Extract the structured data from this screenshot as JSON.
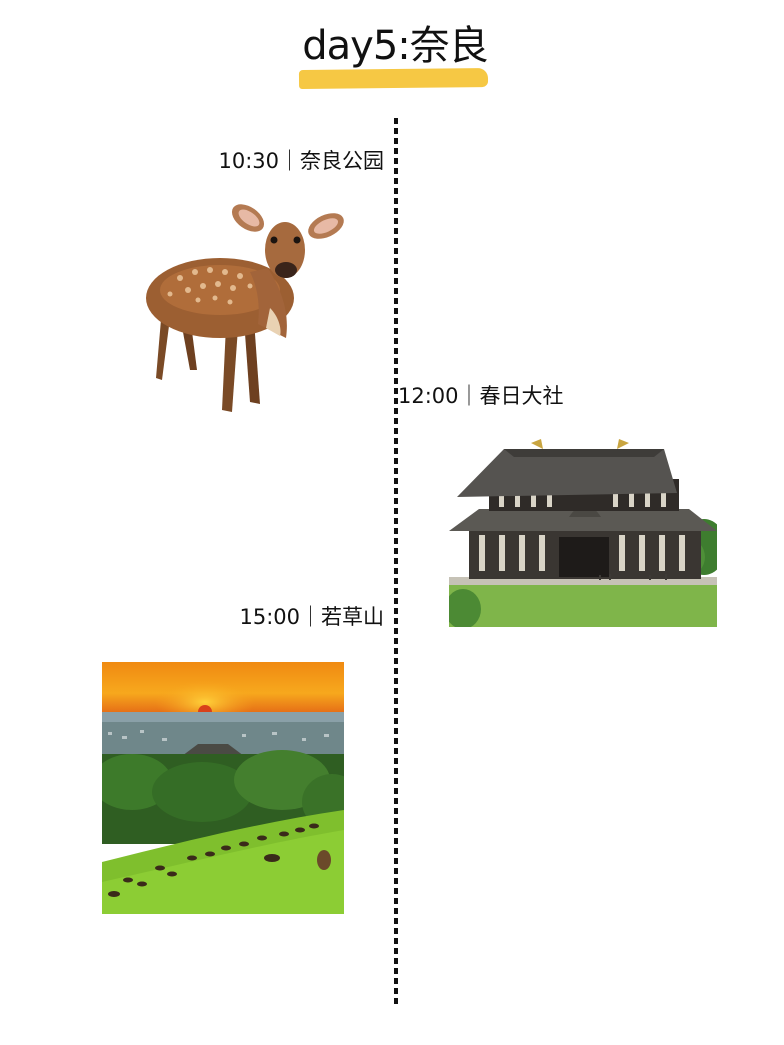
{
  "page": {
    "title": "day5:奈良"
  },
  "stops": [
    {
      "label": "10:30｜奈良公园",
      "photo": "deer-photo"
    },
    {
      "label": "12:00｜春日大社",
      "photo": "temple-hall-photo"
    },
    {
      "label": "15:00｜若草山",
      "photo": "sunset-hill-deer-photo"
    }
  ],
  "colors": {
    "highlight": "#f6c844",
    "timeline": "#111111",
    "text": "#111111"
  }
}
